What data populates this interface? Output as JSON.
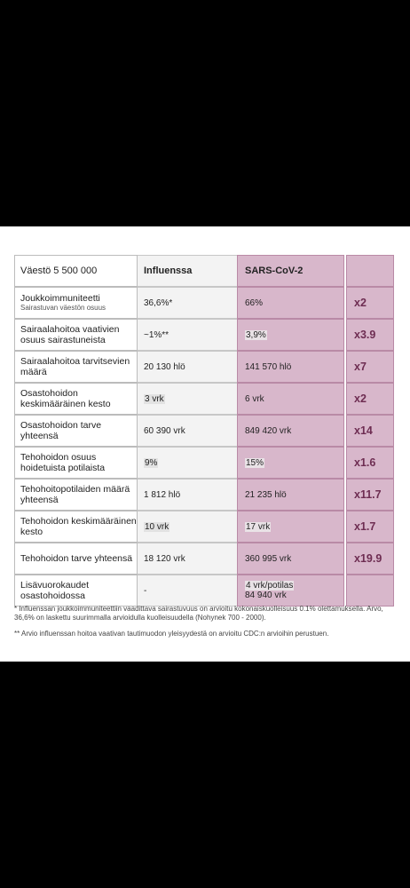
{
  "header": {
    "label": "Väestö 5 500 000",
    "col_influenza": "Influenssa",
    "col_sars": "SARS-CoV-2"
  },
  "rows": [
    {
      "label": "Joukkoimmuniteetti",
      "sub": "Sairastuvan väestön osuus",
      "influenza": "36,6%*",
      "sars": "66%",
      "multiplier": "x2"
    },
    {
      "label": "Sairaalahoitoa vaativien osuus sairastuneista",
      "sub": "",
      "influenza": "~1%**",
      "sars": "3,9%",
      "multiplier": "x3.9"
    },
    {
      "label": "Sairaalahoitoa tarvitsevien määrä",
      "sub": "",
      "influenza": "20 130 hlö",
      "sars": "141 570 hlö",
      "multiplier": "x7"
    },
    {
      "label": "Osastohoidon keskimääräinen kesto",
      "sub": "",
      "influenza": "3 vrk",
      "sars": "6 vrk",
      "multiplier": "x2"
    },
    {
      "label": "Osastohoidon tarve yhteensä",
      "sub": "",
      "influenza": "60 390 vrk",
      "sars": "849 420 vrk",
      "multiplier": "x14"
    },
    {
      "label": "Tehohoidon osuus hoidetuista potilaista",
      "sub": "",
      "influenza": "9%",
      "sars": "15%",
      "multiplier": "x1.6"
    },
    {
      "label": "Tehohoitopotilaiden määrä yhteensä",
      "sub": "",
      "influenza": "1 812 hlö",
      "sars": "21 235 hlö",
      "multiplier": "x11.7"
    },
    {
      "label": "Tehohoidon keskimääräinen kesto",
      "sub": "",
      "influenza": "10 vrk",
      "sars": "17 vrk",
      "multiplier": "x1.7"
    },
    {
      "label": "Tehohoidon tarve yhteensä",
      "sub": "",
      "influenza": "18 120 vrk",
      "sars": "360 995 vrk",
      "multiplier": "x19.9"
    },
    {
      "label": "Lisävuorokaudet osastohoidossa",
      "sub": "",
      "influenza": "-",
      "sars": "4 vrk/potilas",
      "sars2": "84 940 vrk",
      "multiplier": ""
    }
  ],
  "notes": {
    "note1": "* Influenssan joukkoimmuniteettiin vaadittava sairastuvuus on arvioitu kokonaiskuolleisuus 0.1% olettamuksella. Arvo, 36,6% on laskettu suurimmalla arvioidulla kuolleisuudella (Nohynek 700 - 2000).",
    "note2": "** Arvio influenssan hoitoa vaativan tautimuodon yleisyydestä on arvioitu CDC:n arvioihin perustuen."
  },
  "colors": {
    "sars_fill": "#d8b7cb",
    "multiplier_text": "#6e2d52",
    "influenza_fill": "#f3f3f3"
  }
}
